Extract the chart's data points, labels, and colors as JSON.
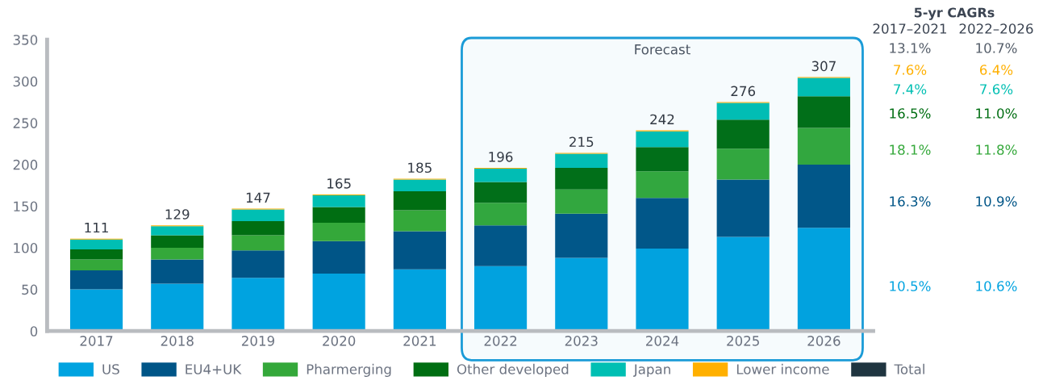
{
  "chart_data": {
    "type": "bar",
    "stacked": true,
    "categories": [
      "2017",
      "2018",
      "2019",
      "2020",
      "2021",
      "2022",
      "2023",
      "2024",
      "2025",
      "2026"
    ],
    "series": [
      {
        "name": "US",
        "color": "#00a3e0",
        "values": [
          50,
          57,
          64,
          69,
          74,
          78,
          88,
          99,
          113,
          124
        ]
      },
      {
        "name": "EU4+UK",
        "color": "#005587",
        "values": [
          23,
          29,
          33,
          39,
          46,
          49,
          53,
          61,
          69,
          76
        ]
      },
      {
        "name": "Pharmerging",
        "color": "#34a83a",
        "values": [
          13,
          14,
          18,
          22,
          25,
          27,
          29,
          32,
          37,
          44
        ]
      },
      {
        "name": "Other developed",
        "color": "#006e12",
        "values": [
          12,
          15,
          17,
          19,
          23,
          25,
          26,
          29,
          35,
          38
        ]
      },
      {
        "name": "Japan",
        "color": "#00bfb3",
        "values": [
          12,
          11,
          14,
          14,
          14,
          16,
          17,
          19,
          20,
          22
        ]
      },
      {
        "name": "Lower income",
        "color": "#ffb000",
        "values": [
          1,
          1,
          1,
          1,
          1,
          1,
          1,
          1,
          1,
          1
        ]
      },
      {
        "name": "Total",
        "color": "#1f3540",
        "values": [
          null,
          null,
          null,
          null,
          null,
          null,
          null,
          null,
          null,
          null
        ]
      }
    ],
    "totals": [
      "111",
      "129",
      "147",
      "165",
      "185",
      "196",
      "215",
      "242",
      "276",
      "307"
    ],
    "ylim": [
      0,
      350
    ],
    "yticks": [
      0,
      50,
      100,
      150,
      200,
      250,
      300,
      350
    ],
    "bands": [
      {
        "axis": "x",
        "from": "2022",
        "to": "2026",
        "label": "Forecast",
        "color": "#1a9bd7"
      }
    ],
    "annotations": [
      "5-yr CAGRs",
      "2017–2021",
      "2022–2026",
      "13.1%",
      "10.7%",
      "7.6%",
      "6.4%",
      "7.4%",
      "7.6%",
      "16.5%",
      "11.0%",
      "18.1%",
      "11.8%",
      "16.3%",
      "10.9%",
      "10.5%",
      "10.6%"
    ],
    "grid": false,
    "legend": "bottom"
  }
}
